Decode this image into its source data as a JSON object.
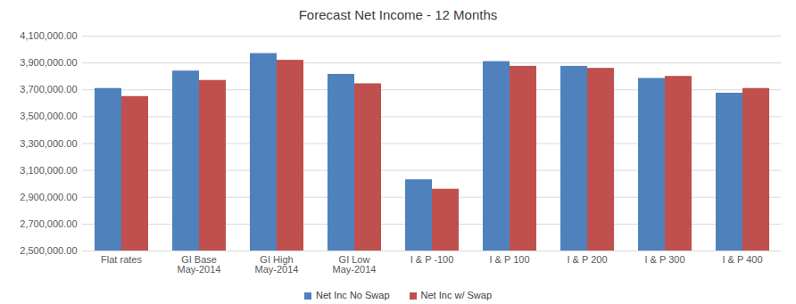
{
  "chart_data": {
    "type": "bar",
    "title": "Forecast Net Income - 12 Months",
    "categories": [
      "Flat rates",
      "GI Base May-2014",
      "GI High May-2014",
      "GI Low May-2014",
      "I & P -100",
      "I & P 100",
      "I & P 200",
      "I & P 300",
      "I & P 400"
    ],
    "series": [
      {
        "name": "Net Inc No Swap",
        "color": "#4f81bd",
        "values": [
          3710000,
          3840000,
          3970000,
          3815000,
          3030000,
          3910000,
          3875000,
          3785000,
          3675000
        ]
      },
      {
        "name": "Net Inc w/ Swap",
        "color": "#c0504d",
        "values": [
          3650000,
          3770000,
          3920000,
          3745000,
          2960000,
          3875000,
          3860000,
          3800000,
          3710000
        ]
      }
    ],
    "ylim": [
      2500000,
      4100000
    ],
    "yticks": [
      {
        "value": 2500000,
        "label": "2,500,000.00"
      },
      {
        "value": 2700000,
        "label": "2,700,000.00"
      },
      {
        "value": 2900000,
        "label": "2,900,000.00"
      },
      {
        "value": 3100000,
        "label": "3,100,000.00"
      },
      {
        "value": 3300000,
        "label": "3,300,000.00"
      },
      {
        "value": 3500000,
        "label": "3,500,000.00"
      },
      {
        "value": 3700000,
        "label": "3,700,000.00"
      },
      {
        "value": 3900000,
        "label": "3,900,000.00"
      },
      {
        "value": 4100000,
        "label": "4,100,000.00"
      }
    ],
    "grid": true,
    "legend": "bottom"
  }
}
